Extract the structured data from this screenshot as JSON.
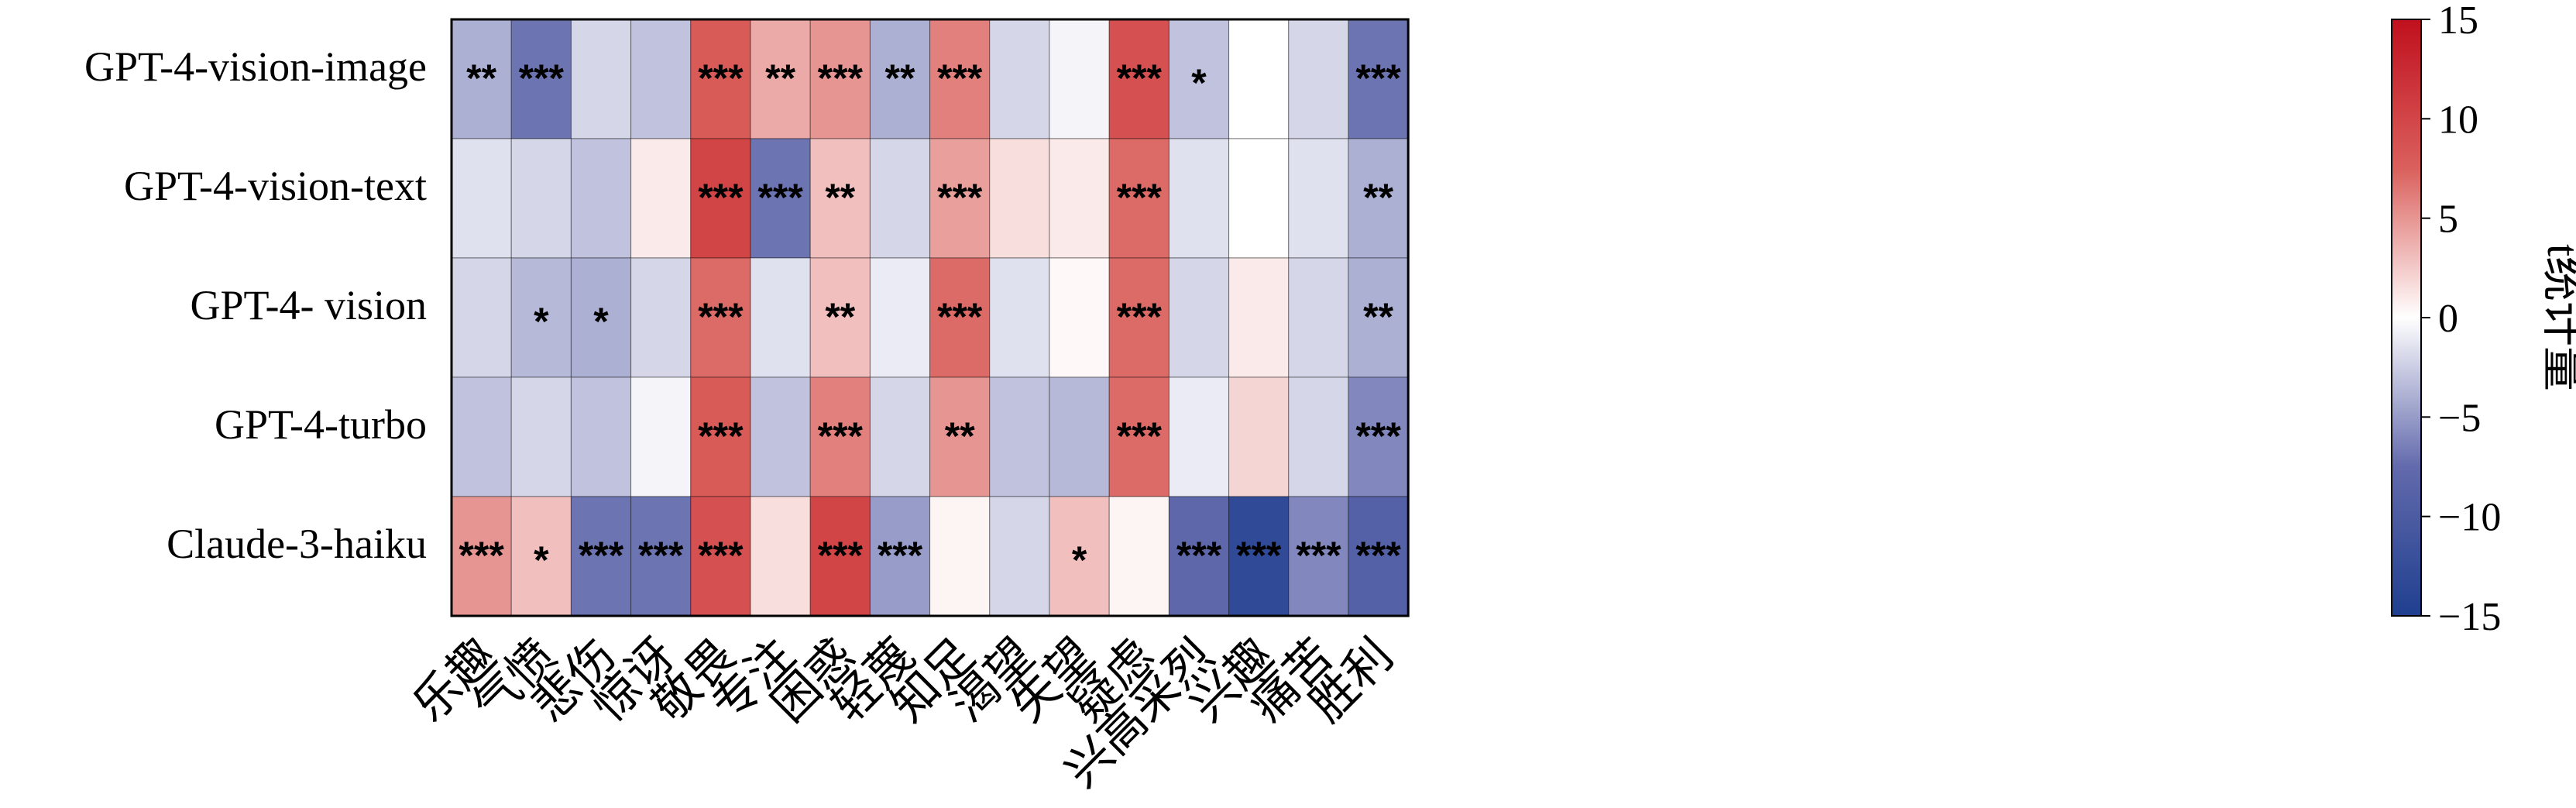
{
  "chart_data": {
    "type": "heatmap",
    "rows": [
      "GPT-4-vision-image",
      "GPT-4-vision-text",
      "GPT-4- vision",
      "GPT-4-turbo",
      "Claude-3-haiku"
    ],
    "columns": [
      "乐趣",
      "气愤",
      "悲伤",
      "惊讶",
      "敬畏",
      "专注",
      "困惑",
      "轻蔑",
      "知足",
      "渴望",
      "失望",
      "疑虑",
      "兴高采烈",
      "兴趣",
      "痛苦",
      "胜利"
    ],
    "values": [
      [
        -4,
        -7,
        -2,
        -3,
        8,
        4,
        5,
        -4,
        6,
        -2,
        -0.5,
        9,
        -3,
        0,
        -2,
        -7
      ],
      [
        -1.5,
        -2,
        -3,
        1,
        10,
        -7,
        3,
        -2,
        4.5,
        1.5,
        1,
        7,
        -1.5,
        0,
        -1.5,
        -4
      ],
      [
        -2,
        -3.5,
        -4,
        -2,
        7,
        -1.5,
        3,
        -1,
        7,
        -1.5,
        0.3,
        7,
        -2,
        1,
        -2,
        -4
      ],
      [
        -3,
        -2,
        -3,
        -0.5,
        8,
        -3,
        6,
        -2,
        5,
        -3,
        -3.5,
        7,
        -1,
        2,
        -2,
        -6
      ],
      [
        5,
        3,
        -7,
        -7,
        9,
        1.5,
        10,
        -5,
        0.5,
        -2,
        3,
        0.5,
        -8,
        -13,
        -6,
        -9
      ]
    ],
    "significance": [
      [
        "**",
        "***",
        "",
        "",
        "***",
        "**",
        "***",
        "**",
        "***",
        "",
        "",
        "***",
        "*",
        "",
        "",
        "***"
      ],
      [
        "",
        "",
        "",
        "",
        "***",
        "***",
        "**",
        "",
        "***",
        "",
        "",
        "***",
        "",
        "",
        "",
        "**"
      ],
      [
        "",
        "*",
        "*",
        "",
        "***",
        "",
        "**",
        "",
        "***",
        "",
        "",
        "***",
        "",
        "",
        "",
        "**"
      ],
      [
        "",
        "",
        "",
        "",
        "***",
        "",
        "***",
        "",
        "**",
        "",
        "",
        "***",
        "",
        "",
        "",
        "***"
      ],
      [
        "***",
        "*",
        "***",
        "***",
        "***",
        "",
        "***",
        "***",
        "",
        "",
        "*",
        "",
        "***",
        "***",
        "***",
        "***"
      ]
    ],
    "colorbar": {
      "label": "t统计量",
      "min": -15,
      "max": 15,
      "ticks": [
        15,
        10,
        5,
        0,
        -5,
        -10,
        -15
      ],
      "tick_labels": [
        "15",
        "10",
        "5",
        "0",
        "−5",
        "−10",
        "−15"
      ],
      "low_color": "#1f3f8f",
      "mid_color": "#ffffff",
      "high_color": "#c0101e"
    }
  }
}
